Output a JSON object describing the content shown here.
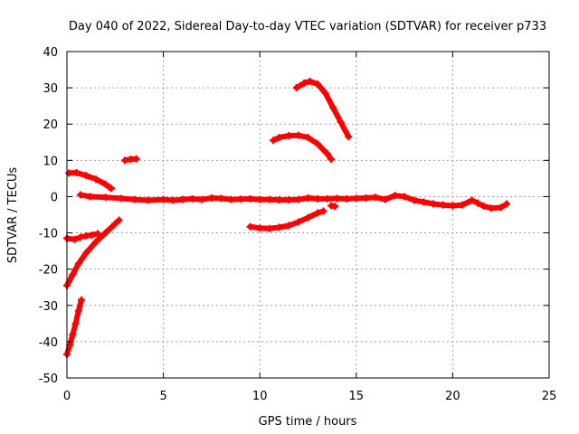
{
  "chart_data": {
    "type": "scatter",
    "title": "Day 040 of 2022, Sidereal Day-to-day VTEC variation (SDTVAR) for receiver p733",
    "xlabel": "GPS time / hours",
    "ylabel": "SDTVAR / TECUs",
    "xlim": [
      0,
      25
    ],
    "ylim": [
      -50,
      40
    ],
    "xticks": [
      0,
      5,
      10,
      15,
      20,
      25
    ],
    "yticks": [
      40,
      30,
      20,
      10,
      0,
      -10,
      -20,
      -30,
      -40,
      -50
    ],
    "grid": true,
    "grid_style": "dotted",
    "marker": "+",
    "color": "#ff0000",
    "series": [
      {
        "points": [
          [
            0.1,
            6.5
          ],
          [
            0.5,
            6.6
          ],
          [
            1.0,
            5.8
          ],
          [
            1.5,
            4.8
          ],
          [
            2.0,
            3.4
          ],
          [
            2.2,
            2.6
          ],
          [
            2.3,
            2.3
          ]
        ]
      },
      {
        "points": [
          [
            0.0,
            -11.5
          ],
          [
            0.4,
            -11.8
          ],
          [
            0.7,
            -11.2
          ],
          [
            1.0,
            -10.8
          ],
          [
            1.3,
            -10.6
          ],
          [
            1.6,
            -10.2
          ]
        ]
      },
      {
        "points": [
          [
            0.0,
            -24.5
          ],
          [
            0.3,
            -21.5
          ],
          [
            0.6,
            -18.5
          ],
          [
            1.0,
            -15.5
          ],
          [
            1.5,
            -12.5
          ],
          [
            2.0,
            -10.0
          ],
          [
            2.5,
            -7.5
          ],
          [
            2.7,
            -6.5
          ]
        ]
      },
      {
        "points": [
          [
            0.0,
            -43.5
          ],
          [
            0.15,
            -41.0
          ],
          [
            0.3,
            -38.0
          ],
          [
            0.45,
            -35.0
          ],
          [
            0.6,
            -31.5
          ],
          [
            0.75,
            -28.5
          ]
        ]
      },
      {
        "points": [
          [
            3.0,
            10.0
          ],
          [
            3.3,
            10.3
          ],
          [
            3.6,
            10.4
          ]
        ]
      },
      {
        "points": [
          [
            0.7,
            0.5
          ],
          [
            1.2,
            0.0
          ],
          [
            2.0,
            -0.2
          ],
          [
            2.8,
            -0.5
          ],
          [
            3.5,
            -0.8
          ],
          [
            4.2,
            -1.0
          ],
          [
            5.0,
            -0.8
          ],
          [
            5.5,
            -1.0
          ],
          [
            6.0,
            -0.8
          ],
          [
            6.5,
            -0.6
          ],
          [
            7.0,
            -0.8
          ],
          [
            7.5,
            -0.4
          ],
          [
            8.0,
            -0.5
          ],
          [
            8.5,
            -0.8
          ],
          [
            9.0,
            -0.7
          ],
          [
            9.5,
            -0.6
          ],
          [
            10.0,
            -0.8
          ],
          [
            10.5,
            -0.8
          ],
          [
            11.0,
            -0.9
          ],
          [
            11.5,
            -0.9
          ],
          [
            12.0,
            -0.8
          ],
          [
            12.5,
            -0.4
          ],
          [
            13.0,
            -0.6
          ],
          [
            13.5,
            -0.6
          ],
          [
            14.0,
            -0.5
          ],
          [
            14.5,
            -0.6
          ],
          [
            15.0,
            -0.5
          ],
          [
            15.5,
            -0.4
          ],
          [
            16.0,
            -0.2
          ],
          [
            16.5,
            -0.8
          ],
          [
            17.0,
            0.3
          ],
          [
            17.5,
            0.0
          ],
          [
            18.0,
            -1.0
          ],
          [
            18.5,
            -1.5
          ],
          [
            19.0,
            -2.0
          ],
          [
            19.5,
            -2.3
          ],
          [
            20.0,
            -2.5
          ],
          [
            20.5,
            -2.3
          ],
          [
            21.0,
            -1.0
          ],
          [
            21.3,
            -1.8
          ],
          [
            21.6,
            -2.6
          ],
          [
            22.0,
            -3.2
          ],
          [
            22.5,
            -3.0
          ],
          [
            22.8,
            -2.0
          ]
        ]
      },
      {
        "points": [
          [
            9.5,
            -8.3
          ],
          [
            10.0,
            -8.7
          ],
          [
            10.5,
            -8.8
          ],
          [
            11.0,
            -8.5
          ],
          [
            11.5,
            -8.0
          ],
          [
            12.0,
            -7.0
          ],
          [
            12.5,
            -5.8
          ],
          [
            13.0,
            -4.5
          ],
          [
            13.3,
            -4.0
          ]
        ]
      },
      {
        "points": [
          [
            13.7,
            -2.5
          ],
          [
            13.9,
            -2.7
          ]
        ]
      },
      {
        "points": [
          [
            10.7,
            15.5
          ],
          [
            11.0,
            16.3
          ],
          [
            11.5,
            16.8
          ],
          [
            12.0,
            16.9
          ],
          [
            12.5,
            16.3
          ],
          [
            13.0,
            14.5
          ],
          [
            13.5,
            11.8
          ],
          [
            13.7,
            10.3
          ]
        ]
      },
      {
        "points": [
          [
            11.9,
            30.0
          ],
          [
            12.3,
            31.3
          ],
          [
            12.6,
            31.8
          ],
          [
            13.0,
            31.0
          ],
          [
            13.4,
            28.5
          ],
          [
            13.8,
            24.5
          ],
          [
            14.2,
            20.5
          ],
          [
            14.6,
            16.5
          ]
        ]
      }
    ]
  }
}
